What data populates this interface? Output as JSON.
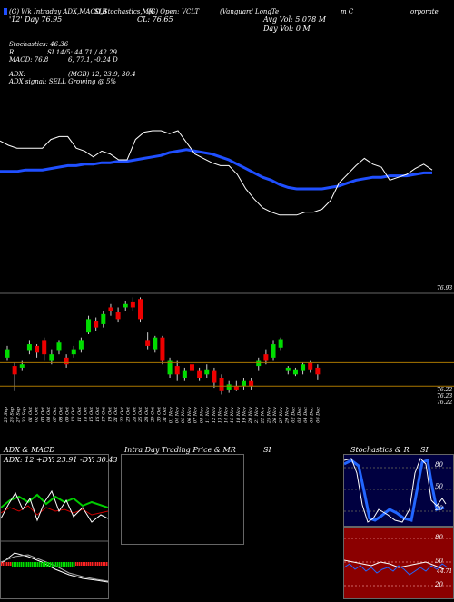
{
  "header": {
    "symbol_line": "(G) Wk Intraday ADX,MACD,B",
    "symbol_line2": "'12' Day  76.95",
    "title_mid": "SI,Stochastics,MR",
    "title_right": "(Vanguard LongTe",
    "title_end1": "m C",
    "title_end2": "orporate",
    "cls_line": "CL: 76.65",
    "open_line": "(G) Open:",
    "open_value": "VCLT",
    "avg_vol": "Avg Vol: 5.078  M",
    "day_vol": "Day Vol: 0  M"
  },
  "indicators": {
    "stoch_label": "Stochastics: 46.36",
    "r_label": "R",
    "si_label": "SI 14/5: 44.71 / 42.29",
    "macd_label": "MACD: 76.8",
    "macd_values": "6, 77.1, -0.24  D",
    "adx_label": "ADX:",
    "mgb_label": "(MGB) 12, 23.9, 30.4",
    "adx_signal": "ADX  signal: SELL  Growing @ 5%"
  },
  "price_labels": {
    "top_right": "76.93",
    "bottom_1": "76.22",
    "bottom_2": "76.23",
    "bottom_3": "76.22"
  },
  "dates": [
    "25 Sep",
    "26 Sep",
    "27 Sep",
    "30 Sep",
    "01 Oct",
    "02 Oct",
    "03 Oct",
    "04 Oct",
    "07 Oct",
    "08 Oct",
    "09 Oct",
    "10 Oct",
    "11 Oct",
    "14 Oct",
    "15 Oct",
    "16 Oct",
    "17 Oct",
    "18 Oct",
    "21 Oct",
    "22 Oct",
    "23 Oct",
    "24 Oct",
    "25 Oct",
    "28 Oct",
    "29 Oct",
    "30 Oct",
    "31 Oct",
    "01 Nov",
    "04 Nov",
    "05 Nov",
    "06 Nov",
    "07 Nov",
    "08 Nov",
    "11 Nov",
    "12 Nov",
    "13 Nov",
    "14 Nov",
    "15 Nov",
    "18 Nov",
    "19 Nov",
    "20 Nov",
    "21 Nov",
    "22 Nov",
    "25 Nov",
    "26 Nov",
    "27 Nov",
    "29 Nov",
    "02 Dec",
    "03 Dec",
    "04 Dec",
    "05 Dec",
    "06 Dec"
  ],
  "bottom_panels": {
    "adx_title": "ADX  & MACD",
    "adx_values": "ADX: 12  +DY: 23.91  -DY: 30.43",
    "intraday_title": "Intra  Day Trading Price  & MR",
    "intraday_si": "SI",
    "stoch_title": "Stochastics & R",
    "stoch_si": "SI",
    "stoch_ticks": [
      "80",
      "50",
      "20"
    ],
    "rsi_ticks": [
      "80",
      "50",
      "20"
    ],
    "rsi_value": "44.71"
  },
  "chart_data": {
    "type": "line",
    "title": "Vanguard LongTerm Corporate (VCLT)",
    "upper_series": {
      "white_line": [
        73,
        70,
        68,
        68,
        68,
        68,
        74,
        76,
        76,
        68,
        66,
        62,
        66,
        64,
        60,
        60,
        74,
        79,
        80,
        80,
        78,
        80,
        72,
        64,
        61,
        58,
        56,
        56,
        50,
        40,
        33,
        27,
        24,
        22,
        22,
        22,
        24,
        24,
        26,
        32,
        44,
        50,
        56,
        61,
        57,
        55,
        46,
        48,
        50,
        54,
        57,
        53
      ],
      "blue_line": [
        52,
        52,
        52,
        53,
        53,
        53,
        54,
        55,
        56,
        56,
        57,
        57,
        58,
        58,
        59,
        59,
        60,
        61,
        62,
        63,
        65,
        66,
        67,
        66,
        65,
        64,
        62,
        60,
        57,
        54,
        51,
        48,
        46,
        43,
        41,
        40,
        40,
        40,
        40,
        41,
        42,
        44,
        46,
        47,
        48,
        48,
        49,
        49,
        49,
        50,
        51,
        51
      ]
    },
    "candles": [
      {
        "o": 76.8,
        "c": 76.85,
        "h": 76.87,
        "l": 76.78,
        "color": "green"
      },
      {
        "o": 76.75,
        "c": 76.7,
        "h": 76.77,
        "l": 76.6,
        "color": "red"
      },
      {
        "o": 76.74,
        "c": 76.76,
        "h": 76.78,
        "l": 76.72,
        "color": "green"
      },
      {
        "o": 76.84,
        "c": 76.88,
        "h": 76.9,
        "l": 76.82,
        "color": "green"
      },
      {
        "o": 76.87,
        "c": 76.83,
        "h": 76.88,
        "l": 76.8,
        "color": "red"
      },
      {
        "o": 76.9,
        "c": 76.82,
        "h": 76.92,
        "l": 76.78,
        "color": "red"
      },
      {
        "o": 76.78,
        "c": 76.82,
        "h": 76.85,
        "l": 76.76,
        "color": "green"
      },
      {
        "o": 76.84,
        "c": 76.89,
        "h": 76.9,
        "l": 76.82,
        "color": "green"
      },
      {
        "o": 76.8,
        "c": 76.76,
        "h": 76.82,
        "l": 76.74,
        "color": "red"
      },
      {
        "o": 76.82,
        "c": 76.85,
        "h": 76.87,
        "l": 76.8,
        "color": "green"
      },
      {
        "o": 76.85,
        "c": 76.9,
        "h": 76.92,
        "l": 76.83,
        "color": "green"
      },
      {
        "o": 76.95,
        "c": 77.03,
        "h": 77.05,
        "l": 76.94,
        "color": "green"
      },
      {
        "o": 77.02,
        "c": 76.98,
        "h": 77.04,
        "l": 76.96,
        "color": "red"
      },
      {
        "o": 77.0,
        "c": 77.06,
        "h": 77.08,
        "l": 76.98,
        "color": "green"
      },
      {
        "o": 77.1,
        "c": 77.08,
        "h": 77.12,
        "l": 77.05,
        "color": "red"
      },
      {
        "o": 77.07,
        "c": 77.03,
        "h": 77.1,
        "l": 77.01,
        "color": "red"
      },
      {
        "o": 77.1,
        "c": 77.12,
        "h": 77.14,
        "l": 77.08,
        "color": "green"
      },
      {
        "o": 77.13,
        "c": 77.1,
        "h": 77.16,
        "l": 77.08,
        "color": "red"
      },
      {
        "o": 77.15,
        "c": 77.03,
        "h": 77.16,
        "l": 77.01,
        "color": "red"
      },
      {
        "o": 76.9,
        "c": 76.87,
        "h": 76.95,
        "l": 76.85,
        "color": "red"
      },
      {
        "o": 76.85,
        "c": 76.92,
        "h": 76.93,
        "l": 76.83,
        "color": "green"
      },
      {
        "o": 76.92,
        "c": 76.78,
        "h": 76.93,
        "l": 76.76,
        "color": "red"
      },
      {
        "o": 76.7,
        "c": 76.78,
        "h": 76.8,
        "l": 76.68,
        "color": "green"
      },
      {
        "o": 76.75,
        "c": 76.7,
        "h": 76.78,
        "l": 76.66,
        "color": "red"
      },
      {
        "o": 76.68,
        "c": 76.72,
        "h": 76.74,
        "l": 76.66,
        "color": "green"
      },
      {
        "o": 76.76,
        "c": 76.72,
        "h": 76.8,
        "l": 76.7,
        "color": "red"
      },
      {
        "o": 76.72,
        "c": 76.68,
        "h": 76.74,
        "l": 76.66,
        "color": "red"
      },
      {
        "o": 76.7,
        "c": 76.73,
        "h": 76.76,
        "l": 76.68,
        "color": "green"
      },
      {
        "o": 76.72,
        "c": 76.65,
        "h": 76.74,
        "l": 76.62,
        "color": "red"
      },
      {
        "o": 76.68,
        "c": 76.6,
        "h": 76.7,
        "l": 76.58,
        "color": "red"
      },
      {
        "o": 76.61,
        "c": 76.64,
        "h": 76.66,
        "l": 76.59,
        "color": "green"
      },
      {
        "o": 76.63,
        "c": 76.61,
        "h": 76.66,
        "l": 76.6,
        "color": "red"
      },
      {
        "o": 76.63,
        "c": 76.66,
        "h": 76.68,
        "l": 76.61,
        "color": "green"
      },
      {
        "o": 76.66,
        "c": 76.63,
        "h": 76.68,
        "l": 76.61,
        "color": "red"
      },
      {
        "o": 76.75,
        "c": 76.78,
        "h": 76.8,
        "l": 76.72,
        "color": "green"
      },
      {
        "o": 76.82,
        "c": 76.78,
        "h": 76.85,
        "l": 76.76,
        "color": "red"
      },
      {
        "o": 76.8,
        "c": 76.88,
        "h": 76.9,
        "l": 76.78,
        "color": "green"
      },
      {
        "o": 76.86,
        "c": 76.91,
        "h": 76.92,
        "l": 76.84,
        "color": "green"
      },
      {
        "o": 76.72,
        "c": 76.74,
        "h": 76.75,
        "l": 76.7,
        "color": "green"
      },
      {
        "o": 76.7,
        "c": 76.73,
        "h": 76.74,
        "l": 76.69,
        "color": "green"
      },
      {
        "o": 76.72,
        "c": 76.76,
        "h": 76.77,
        "l": 76.7,
        "color": "green"
      },
      {
        "o": 76.77,
        "c": 76.73,
        "h": 76.78,
        "l": 76.71,
        "color": "red"
      },
      {
        "o": 76.74,
        "c": 76.7,
        "h": 76.76,
        "l": 76.67,
        "color": "red"
      }
    ],
    "horizontal_lines": [
      76.77,
      76.63
    ]
  }
}
